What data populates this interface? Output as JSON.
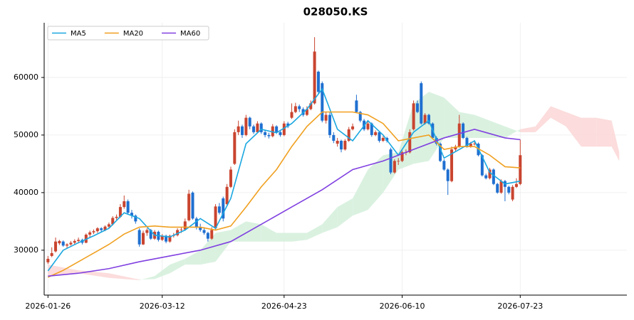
{
  "chart_data": {
    "type": "candlestick",
    "title": "028050.KS",
    "xlim": [
      -1,
      152
    ],
    "ylim": [
      22200,
      69500
    ],
    "xticks": [
      {
        "value": 0,
        "label": "2026-01-26"
      },
      {
        "value": 30,
        "label": "2026-03-12"
      },
      {
        "value": 62,
        "label": "2026-04-23"
      },
      {
        "value": 93,
        "label": "2026-06-10"
      },
      {
        "value": 124,
        "label": "2026-07-23"
      }
    ],
    "yticks": [
      30000,
      40000,
      50000,
      60000
    ],
    "grid": true,
    "legend": "upper left",
    "up_color": "#c9442f",
    "down_color": "#1f6fd0",
    "x": [
      0,
      1,
      2,
      3,
      4,
      5,
      6,
      7,
      8,
      9,
      10,
      11,
      12,
      13,
      14,
      15,
      16,
      17,
      18,
      19,
      20,
      21,
      22,
      23,
      24,
      25,
      26,
      27,
      28,
      29,
      30,
      31,
      32,
      33,
      34,
      35,
      36,
      37,
      38,
      39,
      40,
      41,
      42,
      43,
      44,
      45,
      46,
      47,
      48,
      49,
      50,
      51,
      52,
      53,
      54,
      55,
      56,
      57,
      58,
      59,
      60,
      61,
      62,
      63,
      64,
      65,
      66,
      67,
      68,
      69,
      70,
      71,
      72,
      73,
      74,
      75,
      76,
      77,
      78,
      79,
      80,
      81,
      82,
      83,
      84,
      85,
      86,
      87,
      88,
      89,
      90,
      91,
      92,
      93,
      94,
      95,
      96,
      97,
      98,
      99,
      100,
      101,
      102,
      103,
      104,
      105,
      106,
      107,
      108,
      109,
      110,
      111,
      112,
      113,
      114,
      115,
      116,
      117,
      118,
      119,
      120,
      121,
      122,
      123,
      124
    ],
    "candles": [
      [
        27900,
        29000,
        27600,
        28500
      ],
      [
        29000,
        30500,
        28800,
        29500
      ],
      [
        29800,
        32200,
        29600,
        31500
      ],
      [
        31200,
        31800,
        30900,
        31600
      ],
      [
        31500,
        31700,
        30600,
        30800
      ],
      [
        30800,
        31200,
        30400,
        31000
      ],
      [
        31000,
        31600,
        30800,
        31300
      ],
      [
        31300,
        31900,
        31000,
        31600
      ],
      [
        31600,
        32200,
        31200,
        31800
      ],
      [
        31800,
        32000,
        31000,
        31300
      ],
      [
        31300,
        32900,
        31200,
        32700
      ],
      [
        32700,
        33400,
        32300,
        33100
      ],
      [
        33100,
        33600,
        32800,
        33300
      ],
      [
        33300,
        34000,
        33000,
        33800
      ],
      [
        33800,
        34000,
        33200,
        33500
      ],
      [
        33500,
        34300,
        33300,
        34100
      ],
      [
        34100,
        34800,
        33900,
        34500
      ],
      [
        34500,
        35900,
        34300,
        35600
      ],
      [
        35600,
        36200,
        35300,
        35800
      ],
      [
        35800,
        38000,
        35600,
        37500
      ],
      [
        37500,
        39500,
        37200,
        38500
      ],
      [
        38500,
        38800,
        36200,
        36500
      ],
      [
        36500,
        37000,
        35500,
        36000
      ],
      [
        36000,
        36200,
        34600,
        35000
      ],
      [
        33500,
        33800,
        30600,
        31000
      ],
      [
        31000,
        33400,
        30900,
        33000
      ],
      [
        33000,
        33800,
        32500,
        33500
      ],
      [
        33500,
        33700,
        31800,
        32000
      ],
      [
        32000,
        33500,
        31800,
        33200
      ],
      [
        33200,
        33400,
        31500,
        31800
      ],
      [
        31800,
        32800,
        31600,
        32500
      ],
      [
        32500,
        32700,
        31200,
        31500
      ],
      [
        31500,
        32700,
        31300,
        32500
      ],
      [
        32500,
        33000,
        32200,
        32600
      ],
      [
        32600,
        33800,
        32400,
        33500
      ],
      [
        33500,
        34000,
        33000,
        33600
      ],
      [
        33600,
        35500,
        33400,
        35000
      ],
      [
        35200,
        40500,
        35000,
        39800
      ],
      [
        40000,
        40200,
        35300,
        35500
      ],
      [
        35500,
        35800,
        33600,
        34000
      ],
      [
        34000,
        34600,
        33200,
        33500
      ],
      [
        33500,
        34000,
        32700,
        33000
      ],
      [
        33000,
        33200,
        31500,
        32000
      ],
      [
        32000,
        34000,
        31800,
        33500
      ],
      [
        33800,
        38000,
        33600,
        37600
      ],
      [
        37600,
        38200,
        36200,
        36500
      ],
      [
        39000,
        39300,
        35000,
        35500
      ],
      [
        38000,
        41500,
        37800,
        41000
      ],
      [
        41000,
        44500,
        40800,
        44000
      ],
      [
        45000,
        51000,
        44800,
        50500
      ],
      [
        50500,
        52500,
        50000,
        51500
      ],
      [
        51500,
        51800,
        49500,
        50000
      ],
      [
        50000,
        53500,
        49800,
        53000
      ],
      [
        53000,
        53200,
        51000,
        51500
      ],
      [
        51500,
        51800,
        50200,
        50500
      ],
      [
        50500,
        52400,
        50300,
        52000
      ],
      [
        52000,
        52200,
        50200,
        50500
      ],
      [
        50500,
        50800,
        49600,
        50000
      ],
      [
        50000,
        50400,
        49400,
        49800
      ],
      [
        49800,
        51900,
        49600,
        51500
      ],
      [
        51500,
        51700,
        50200,
        50500
      ],
      [
        50500,
        50800,
        49700,
        50000
      ],
      [
        50000,
        52400,
        49800,
        52000
      ],
      [
        52000,
        52300,
        51200,
        51500
      ],
      [
        53000,
        55500,
        52800,
        54000
      ],
      [
        54000,
        55600,
        53800,
        55000
      ],
      [
        55000,
        55300,
        54000,
        54500
      ],
      [
        54500,
        54800,
        53200,
        53500
      ],
      [
        53500,
        55000,
        53300,
        54500
      ],
      [
        54500,
        56000,
        54300,
        55500
      ],
      [
        55500,
        67000,
        55300,
        64500
      ],
      [
        61000,
        61200,
        57200,
        57500
      ],
      [
        59000,
        59300,
        52200,
        52500
      ],
      [
        52500,
        54000,
        52000,
        53500
      ],
      [
        53500,
        54000,
        49500,
        50000
      ],
      [
        50000,
        50500,
        48600,
        49000
      ],
      [
        48500,
        49500,
        48000,
        49000
      ],
      [
        49000,
        49200,
        47000,
        47500
      ],
      [
        47500,
        49300,
        47300,
        49000
      ],
      [
        49000,
        51400,
        48800,
        51000
      ],
      [
        51000,
        52000,
        50800,
        51500
      ],
      [
        56000,
        57000,
        53800,
        54000
      ],
      [
        54000,
        54200,
        52200,
        52500
      ],
      [
        52500,
        52800,
        50700,
        51000
      ],
      [
        51000,
        52400,
        50800,
        52000
      ],
      [
        52000,
        52200,
        49700,
        50000
      ],
      [
        50000,
        50800,
        49800,
        50500
      ],
      [
        50500,
        50700,
        48700,
        49000
      ],
      [
        49000,
        49800,
        48800,
        49500
      ],
      [
        49500,
        49700,
        48700,
        49000
      ],
      [
        47500,
        47800,
        43200,
        43500
      ],
      [
        43500,
        45800,
        43300,
        45500
      ],
      [
        45500,
        46000,
        44800,
        45500
      ],
      [
        45500,
        47300,
        45300,
        47000
      ],
      [
        47000,
        47500,
        46500,
        47000
      ],
      [
        47000,
        51000,
        46800,
        50500
      ],
      [
        51000,
        56000,
        50800,
        55500
      ],
      [
        55500,
        56000,
        53800,
        54000
      ],
      [
        59000,
        59300,
        51800,
        52000
      ],
      [
        52000,
        53800,
        51800,
        53500
      ],
      [
        53500,
        53700,
        51800,
        52000
      ],
      [
        52000,
        52200,
        49300,
        49500
      ],
      [
        49500,
        49800,
        48200,
        48500
      ],
      [
        48500,
        48700,
        45300,
        45500
      ],
      [
        45500,
        45800,
        43800,
        44000
      ],
      [
        44000,
        44200,
        39600,
        42000
      ],
      [
        42000,
        48000,
        41800,
        47500
      ],
      [
        47500,
        48300,
        47200,
        48000
      ],
      [
        48000,
        53500,
        47800,
        52000
      ],
      [
        52000,
        52200,
        49300,
        49500
      ],
      [
        49500,
        49700,
        47800,
        48000
      ],
      [
        48000,
        48800,
        47800,
        48500
      ],
      [
        48500,
        49000,
        48200,
        48500
      ],
      [
        48500,
        48700,
        46300,
        46500
      ],
      [
        46500,
        46700,
        42800,
        43000
      ],
      [
        43000,
        43300,
        42300,
        42500
      ],
      [
        42500,
        44300,
        42300,
        44000
      ],
      [
        44000,
        44200,
        41300,
        41500
      ],
      [
        41500,
        41700,
        39800,
        40000
      ],
      [
        40000,
        42300,
        39800,
        42000
      ],
      [
        42000,
        42200,
        38500,
        41000
      ],
      [
        41000,
        41200,
        39700,
        40000
      ],
      [
        38800,
        41300,
        38500,
        41000
      ],
      [
        41000,
        42500,
        40800,
        41500
      ],
      [
        41500,
        49200,
        41300,
        46500
      ]
    ],
    "series": [
      {
        "name": "MA5",
        "color": "#1aa7e0",
        "x": [
          0,
          4,
          8,
          12,
          16,
          20,
          24,
          28,
          32,
          36,
          40,
          44,
          48,
          52,
          56,
          60,
          64,
          68,
          72,
          76,
          80,
          84,
          88,
          92,
          96,
          100,
          104,
          108,
          112,
          116,
          120,
          124
        ],
        "values": [
          26400,
          30000,
          31300,
          32500,
          33800,
          36500,
          35500,
          32600,
          32300,
          33500,
          35500,
          33800,
          39000,
          48500,
          51000,
          50400,
          52000,
          54500,
          58000,
          51000,
          49000,
          52500,
          50000,
          46500,
          50500,
          52500,
          46000,
          47500,
          49000,
          43500,
          41500,
          42000
        ]
      },
      {
        "name": "MA20",
        "color": "#f0a020",
        "x": [
          0,
          4,
          8,
          12,
          16,
          20,
          24,
          28,
          32,
          36,
          40,
          44,
          48,
          52,
          56,
          60,
          64,
          68,
          72,
          76,
          80,
          84,
          88,
          92,
          96,
          100,
          104,
          108,
          112,
          116,
          120,
          124
        ],
        "values": [
          25300,
          26500,
          28000,
          29500,
          31000,
          32800,
          34000,
          34200,
          34000,
          34000,
          34000,
          33500,
          34200,
          37500,
          41000,
          44000,
          48000,
          51500,
          54000,
          54000,
          54000,
          53500,
          52000,
          49000,
          49500,
          50000,
          47500,
          48000,
          48000,
          46500,
          44500,
          44300
        ]
      },
      {
        "name": "MA60",
        "color": "#8040e0",
        "x": [
          0,
          8,
          16,
          24,
          32,
          40,
          48,
          56,
          64,
          72,
          80,
          88,
          96,
          104,
          112,
          120,
          124
        ],
        "values": [
          25500,
          26000,
          26800,
          28000,
          29000,
          30000,
          31500,
          34500,
          37500,
          40500,
          44000,
          45500,
          47500,
          49500,
          51000,
          49500,
          49200
        ]
      }
    ],
    "cloud": {
      "up_color": "#d3eedb",
      "down_color": "#fbd6d6",
      "x": [
        0,
        8,
        16,
        24,
        28,
        32,
        36,
        40,
        44,
        48,
        52,
        56,
        60,
        64,
        68,
        72,
        76,
        80,
        84,
        88,
        92,
        96,
        100,
        104,
        108,
        112,
        116,
        120,
        124,
        128,
        132,
        136,
        140,
        144,
        148,
        150
      ],
      "span_a": [
        25500,
        26000,
        25200,
        24800,
        25500,
        27500,
        28500,
        30000,
        33000,
        33500,
        35000,
        34500,
        33000,
        33000,
        33000,
        34500,
        37500,
        39000,
        44000,
        46500,
        47000,
        55500,
        57500,
        56500,
        54000,
        53500,
        52500,
        51500,
        50500,
        50500,
        53000,
        51500,
        48000,
        48000,
        48000,
        45500
      ],
      "span_b": [
        27500,
        26500,
        26000,
        24900,
        25000,
        26000,
        27500,
        27500,
        28000,
        31500,
        31500,
        31500,
        31500,
        31500,
        31800,
        33000,
        34000,
        36000,
        37000,
        40000,
        44000,
        45000,
        45500,
        49500,
        49500,
        49500,
        49500,
        49500,
        51000,
        51500,
        55000,
        54000,
        53000,
        53000,
        52500,
        47000
      ]
    }
  }
}
